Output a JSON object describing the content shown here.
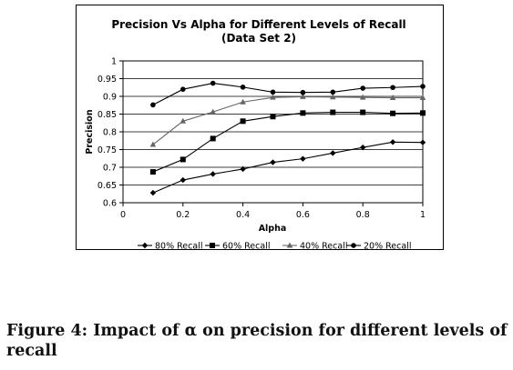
{
  "chart_data": {
    "type": "line",
    "title": "Precision Vs Alpha for Different Levels of Recall",
    "subtitle": "(Data Set 2)",
    "xlabel": "Alpha",
    "ylabel": "Precision",
    "xlim": [
      0,
      1
    ],
    "ylim": [
      0.6,
      1
    ],
    "x_ticks": [
      "0",
      "0.2",
      "0.4",
      "0.6",
      "0.8",
      "1"
    ],
    "y_ticks": [
      "0.6",
      "0.65",
      "0.7",
      "0.75",
      "0.8",
      "0.85",
      "0.9",
      "0.95",
      "1"
    ],
    "grid": "horizontal",
    "legend_position": "bottom",
    "x": [
      0.1,
      0.2,
      0.3,
      0.4,
      0.5,
      0.6,
      0.7,
      0.8,
      0.9,
      1.0
    ],
    "series": [
      {
        "name": "80% Recall",
        "marker": "diamond",
        "values": [
          0.628,
          0.664,
          0.681,
          0.695,
          0.714,
          0.724,
          0.74,
          0.756,
          0.771,
          0.77
        ]
      },
      {
        "name": "60% Recall",
        "marker": "square",
        "values": [
          0.687,
          0.722,
          0.781,
          0.83,
          0.843,
          0.853,
          0.855,
          0.855,
          0.852,
          0.853
        ]
      },
      {
        "name": "40% Recall",
        "marker": "triangle",
        "values": [
          0.764,
          0.83,
          0.856,
          0.884,
          0.897,
          0.899,
          0.898,
          0.897,
          0.896,
          0.896
        ]
      },
      {
        "name": "20% Recall",
        "marker": "circle",
        "values": [
          0.876,
          0.92,
          0.937,
          0.926,
          0.912,
          0.911,
          0.912,
          0.923,
          0.925,
          0.928
        ]
      }
    ]
  },
  "caption": "Figure 4: Impact of α on precision for different levels of recall"
}
